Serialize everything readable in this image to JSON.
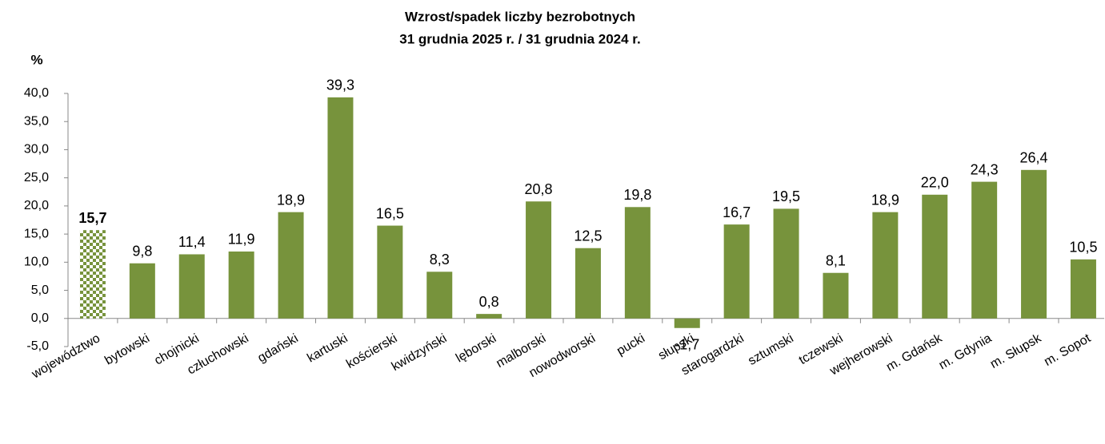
{
  "chart_data": {
    "type": "bar",
    "title": "Wzrost/spadek liczby bezrobotnych",
    "subtitle": "31 grudnia 2025 r. / 31 grudnia 2024 r.",
    "y_label": "%",
    "categories": [
      "województwo",
      "bytowski",
      "chojnicki",
      "człuchowski",
      "gdański",
      "kartuski",
      "kościerski",
      "kwidzyński",
      "lęborski",
      "malborski",
      "nowodworski",
      "pucki",
      "słupski",
      "starogardzki",
      "sztumski",
      "tczewski",
      "wejherowski",
      "m. Gdańsk",
      "m. Gdynia",
      "m. Słupsk",
      "m. Sopot"
    ],
    "values": [
      15.7,
      9.8,
      11.4,
      11.9,
      18.9,
      39.3,
      16.5,
      8.3,
      0.8,
      20.8,
      12.5,
      19.8,
      -1.7,
      16.7,
      19.5,
      8.1,
      18.9,
      22.0,
      24.3,
      26.4,
      10.5
    ],
    "value_labels": [
      "15,7",
      "9,8",
      "11,4",
      "11,9",
      "18,9",
      "39,3",
      "16,5",
      "8,3",
      "0,8",
      "20,8",
      "12,5",
      "19,8",
      "-1,7",
      "16,7",
      "19,5",
      "8,1",
      "18,9",
      "22,0",
      "24,3",
      "26,4",
      "10,5"
    ],
    "color": "#77933c",
    "ylim": [
      -5,
      40
    ],
    "yticks": [
      {
        "value": -5,
        "label": "-5,0"
      },
      {
        "value": 0,
        "label": "0,0"
      },
      {
        "value": 5,
        "label": "5,0"
      },
      {
        "value": 10,
        "label": "10,0"
      },
      {
        "value": 15,
        "label": "15,0"
      },
      {
        "value": 20,
        "label": "20,0"
      },
      {
        "value": 25,
        "label": "25,0"
      },
      {
        "value": 30,
        "label": "30,0"
      },
      {
        "value": 35,
        "label": "35,0"
      },
      {
        "value": 40,
        "label": "40,0"
      }
    ],
    "grid": false
  }
}
